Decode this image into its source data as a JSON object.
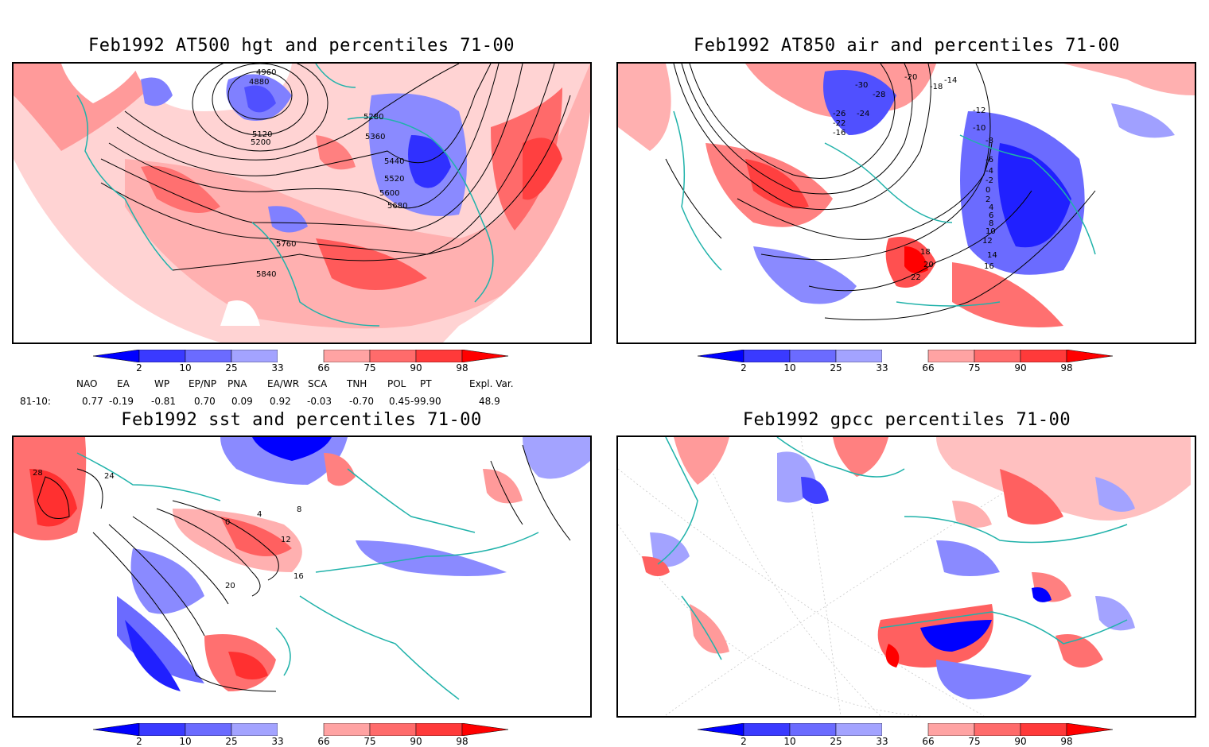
{
  "panels": {
    "top_left": {
      "title": "Feb1992 AT500 hgt and percentiles 71-00",
      "contour_labels": [
        "4880",
        "4960",
        "5120",
        "5200",
        "5280",
        "5360",
        "5440",
        "5520",
        "5600",
        "5680",
        "5760",
        "5840"
      ]
    },
    "top_right": {
      "title": "Feb1992 AT850 air and percentiles 71-00",
      "contour_labels": [
        "-30",
        "-28",
        "-26",
        "-24",
        "-22",
        "-20",
        "-18",
        "-16",
        "-14",
        "-12",
        "-10",
        "-8",
        "-6",
        "-4",
        "-2",
        "0",
        "2",
        "4",
        "6",
        "8",
        "10",
        "12",
        "14",
        "16",
        "18",
        "20",
        "22"
      ]
    },
    "bottom_left": {
      "title": "Feb1992 sst and percentiles 71-00",
      "contour_labels": [
        "0",
        "4",
        "8",
        "12",
        "16",
        "20",
        "24",
        "28"
      ]
    },
    "bottom_right": {
      "title": "Feb1992 gpcc percentiles 71-00"
    }
  },
  "colorbar": {
    "ticks": [
      "2",
      "10",
      "25",
      "33",
      "66",
      "75",
      "90",
      "98"
    ],
    "colors": [
      "#0000ff",
      "#3a3aff",
      "#6b6bff",
      "#a3a3ff",
      "#ffffff",
      "#ffa3a3",
      "#ff6b6b",
      "#ff3a3a",
      "#ff0000"
    ]
  },
  "indices": {
    "header": [
      "NAO",
      "EA",
      "WP",
      "EP/NP",
      "PNA",
      "EA/WR",
      "SCA",
      "TNH",
      "POL",
      "PT",
      "Expl. Var."
    ],
    "row_label": "81-10:",
    "values": [
      "0.77",
      "-0.19",
      "-0.81",
      "0.70",
      "0.09",
      "0.92",
      "-0.03",
      "-0.70",
      "0.45",
      "-99.90",
      "48.9"
    ]
  }
}
